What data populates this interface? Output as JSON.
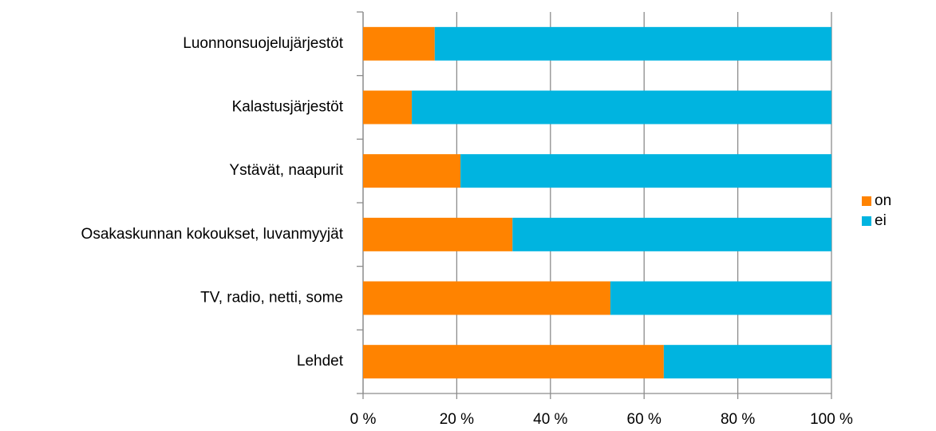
{
  "chart_data": {
    "type": "stacked_bar_horizontal",
    "categories": [
      "Luonnonsuojelujärjestöt",
      "Kalastusjärjestöt",
      "Ystävät, naapurit",
      "Osakaskunnan kokoukset, luvanmyyjät",
      "TV, radio, netti, some",
      "Lehdet"
    ],
    "series": [
      {
        "name": "on",
        "color": "#ff8300",
        "values": [
          15.3,
          10.4,
          20.8,
          31.9,
          52.8,
          64.2
        ]
      },
      {
        "name": "ei",
        "color": "#00b4e0",
        "values": [
          84.7,
          89.6,
          79.2,
          68.1,
          47.2,
          35.8
        ]
      }
    ],
    "xlim": [
      0,
      100
    ],
    "xticks": [
      {
        "value": 0,
        "label": "0 %"
      },
      {
        "value": 20,
        "label": "20 %"
      },
      {
        "value": 40,
        "label": "40 %"
      },
      {
        "value": 60,
        "label": "60 %"
      },
      {
        "value": 80,
        "label": "80 %"
      },
      {
        "value": 100,
        "label": "100 %"
      }
    ],
    "grid": true,
    "legend": "right"
  }
}
